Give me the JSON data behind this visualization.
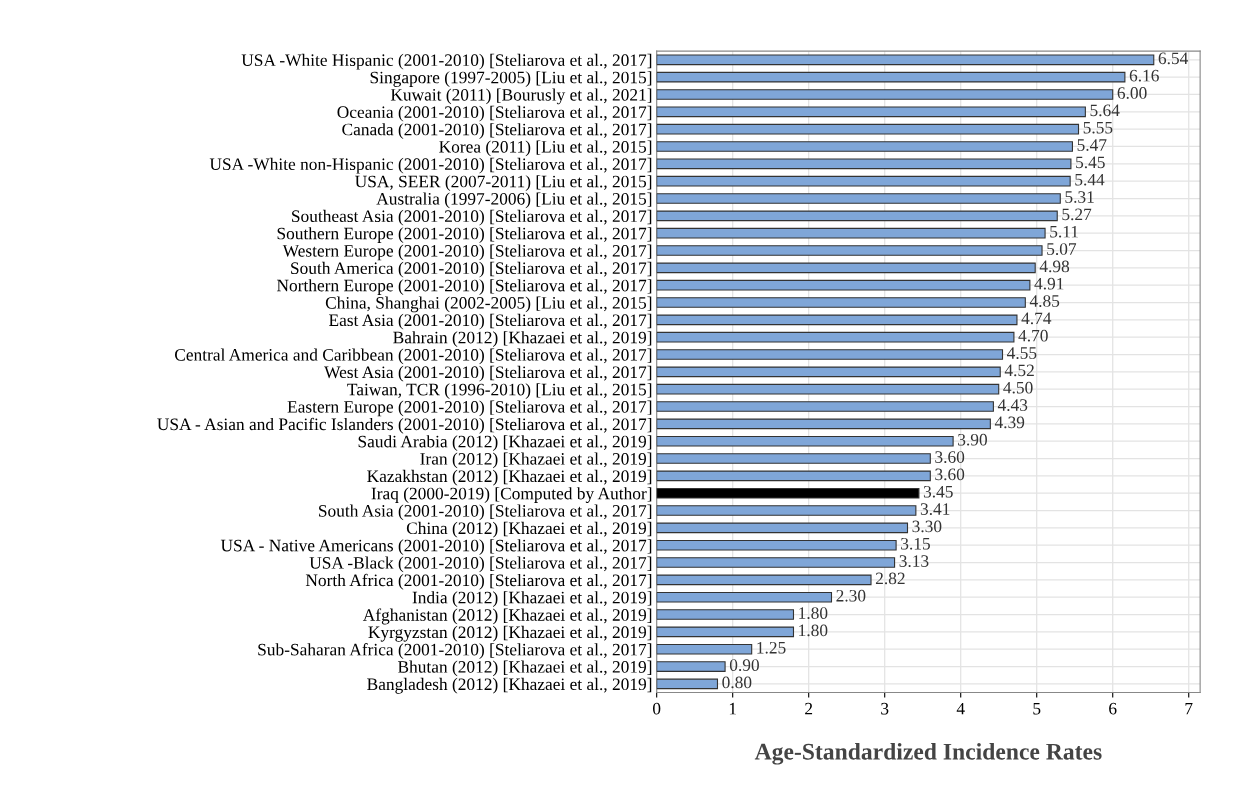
{
  "chart_data": {
    "type": "bar",
    "orientation": "horizontal",
    "xlabel": "Age-Standardized Incidence Rates",
    "categories": [
      "USA -White Hispanic (2001-2010) [Steliarova et al., 2017]",
      "Singapore (1997-2005) [Liu et al., 2015]",
      "Kuwait (2011) [Bourusly et al., 2021]",
      "Oceania (2001-2010) [Steliarova et al., 2017]",
      "Canada (2001-2010) [Steliarova et al., 2017]",
      "Korea (2011) [Liu et al., 2015]",
      "USA -White non-Hispanic (2001-2010) [Steliarova et al., 2017]",
      "USA, SEER (2007-2011) [Liu et al., 2015]",
      "Australia (1997-2006) [Liu et al., 2015]",
      "Southeast Asia (2001-2010) [Steliarova et al., 2017]",
      "Southern Europe (2001-2010) [Steliarova et al., 2017]",
      "Western Europe (2001-2010) [Steliarova et al., 2017]",
      "South America (2001-2010) [Steliarova et al., 2017]",
      "Northern Europe (2001-2010) [Steliarova et al., 2017]",
      "China, Shanghai (2002-2005) [Liu et al., 2015]",
      "East Asia (2001-2010) [Steliarova et al., 2017]",
      "Bahrain (2012) [Khazaei et al., 2019]",
      "Central America and Caribbean (2001-2010) [Steliarova et al., 2017]",
      "West Asia (2001-2010) [Steliarova et al., 2017]",
      "Taiwan, TCR (1996-2010) [Liu et al., 2015]",
      "Eastern Europe (2001-2010) [Steliarova et al., 2017]",
      "USA - Asian and Pacific Islanders (2001-2010) [Steliarova et al., 2017]",
      "Saudi Arabia (2012) [Khazaei et al., 2019]",
      "Iran (2012) [Khazaei et al., 2019]",
      "Kazakhstan (2012) [Khazaei et al., 2019]",
      "Iraq (2000-2019) [Computed by Author]",
      "South Asia (2001-2010) [Steliarova et al., 2017]",
      "China (2012) [Khazaei et al., 2019]",
      "USA - Native Americans (2001-2010) [Steliarova et al., 2017]",
      "USA -Black (2001-2010) [Steliarova et al., 2017]",
      "North Africa (2001-2010) [Steliarova et al., 2017]",
      "India (2012) [Khazaei et al., 2019]",
      "Afghanistan (2012) [Khazaei et al., 2019]",
      "Kyrgyzstan (2012) [Khazaei et al., 2019]",
      "Sub-Saharan Africa (2001-2010) [Steliarova et al., 2017]",
      "Bhutan (2012) [Khazaei et al., 2019]",
      "Bangladesh (2012) [Khazaei et al., 2019]"
    ],
    "values": [
      6.54,
      6.16,
      6.0,
      5.64,
      5.55,
      5.47,
      5.45,
      5.44,
      5.31,
      5.27,
      5.11,
      5.07,
      4.98,
      4.91,
      4.85,
      4.74,
      4.7,
      4.55,
      4.52,
      4.5,
      4.43,
      4.39,
      3.9,
      3.6,
      3.6,
      3.45,
      3.41,
      3.3,
      3.15,
      3.13,
      2.82,
      2.3,
      1.8,
      1.8,
      1.25,
      0.9,
      0.8
    ],
    "value_labels": [
      "6.54",
      "6.16",
      "6.00",
      "5.64",
      "5.55",
      "5.47",
      "5.45",
      "5.44",
      "5.31",
      "5.27",
      "5.11",
      "5.07",
      "4.98",
      "4.91",
      "4.85",
      "4.74",
      "4.70",
      "4.55",
      "4.52",
      "4.50",
      "4.43",
      "4.39",
      "3.90",
      "3.60",
      "3.60",
      "3.45",
      "3.41",
      "3.30",
      "3.15",
      "3.13",
      "2.82",
      "2.30",
      "1.80",
      "1.80",
      "1.25",
      "0.90",
      "0.80"
    ],
    "colors": [
      "#7fa6d8",
      "#7fa6d8",
      "#7fa6d8",
      "#7fa6d8",
      "#7fa6d8",
      "#7fa6d8",
      "#7fa6d8",
      "#7fa6d8",
      "#7fa6d8",
      "#7fa6d8",
      "#7fa6d8",
      "#7fa6d8",
      "#7fa6d8",
      "#7fa6d8",
      "#7fa6d8",
      "#7fa6d8",
      "#7fa6d8",
      "#7fa6d8",
      "#7fa6d8",
      "#7fa6d8",
      "#7fa6d8",
      "#7fa6d8",
      "#7fa6d8",
      "#7fa6d8",
      "#7fa6d8",
      "#000000",
      "#7fa6d8",
      "#7fa6d8",
      "#7fa6d8",
      "#7fa6d8",
      "#7fa6d8",
      "#7fa6d8",
      "#7fa6d8",
      "#7fa6d8",
      "#7fa6d8",
      "#7fa6d8",
      "#7fa6d8"
    ],
    "xlim": [
      0,
      7.15
    ],
    "xticks": [
      0,
      1,
      2,
      3,
      4,
      5,
      6,
      7
    ],
    "grid": true
  }
}
